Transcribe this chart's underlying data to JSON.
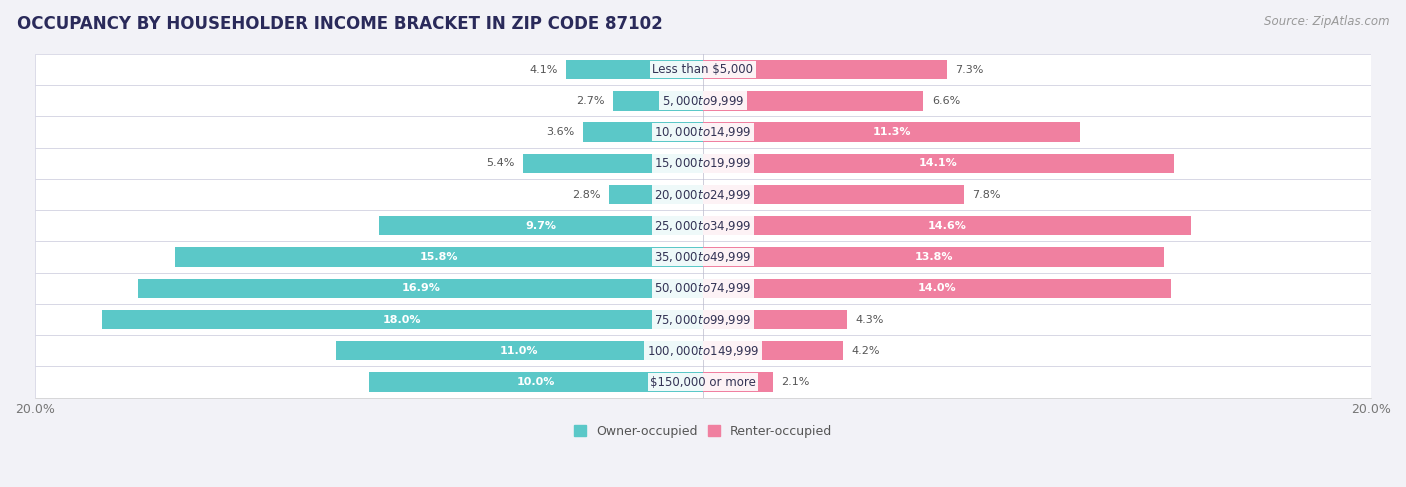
{
  "title": "OCCUPANCY BY HOUSEHOLDER INCOME BRACKET IN ZIP CODE 87102",
  "source": "Source: ZipAtlas.com",
  "categories": [
    "Less than $5,000",
    "$5,000 to $9,999",
    "$10,000 to $14,999",
    "$15,000 to $19,999",
    "$20,000 to $24,999",
    "$25,000 to $34,999",
    "$35,000 to $49,999",
    "$50,000 to $74,999",
    "$75,000 to $99,999",
    "$100,000 to $149,999",
    "$150,000 or more"
  ],
  "owner_values": [
    4.1,
    2.7,
    3.6,
    5.4,
    2.8,
    9.7,
    15.8,
    16.9,
    18.0,
    11.0,
    10.0
  ],
  "renter_values": [
    7.3,
    6.6,
    11.3,
    14.1,
    7.8,
    14.6,
    13.8,
    14.0,
    4.3,
    4.2,
    2.1
  ],
  "owner_color": "#5BC8C8",
  "renter_color": "#F080A0",
  "owner_label": "Owner-occupied",
  "renter_label": "Renter-occupied",
  "xlim": 20.0,
  "bar_height": 0.62,
  "bg_color": "#f2f2f7",
  "row_color": "#ffffff",
  "title_color": "#2a2a5a",
  "source_color": "#999999",
  "label_color_inside": "#ffffff",
  "label_color_outside": "#555555",
  "axis_label_color": "#777777",
  "title_fontsize": 12,
  "source_fontsize": 8.5,
  "category_fontsize": 8.5,
  "value_fontsize": 8,
  "legend_fontsize": 9,
  "axis_tick_fontsize": 9,
  "owner_threshold": 8.0,
  "renter_threshold": 8.0
}
